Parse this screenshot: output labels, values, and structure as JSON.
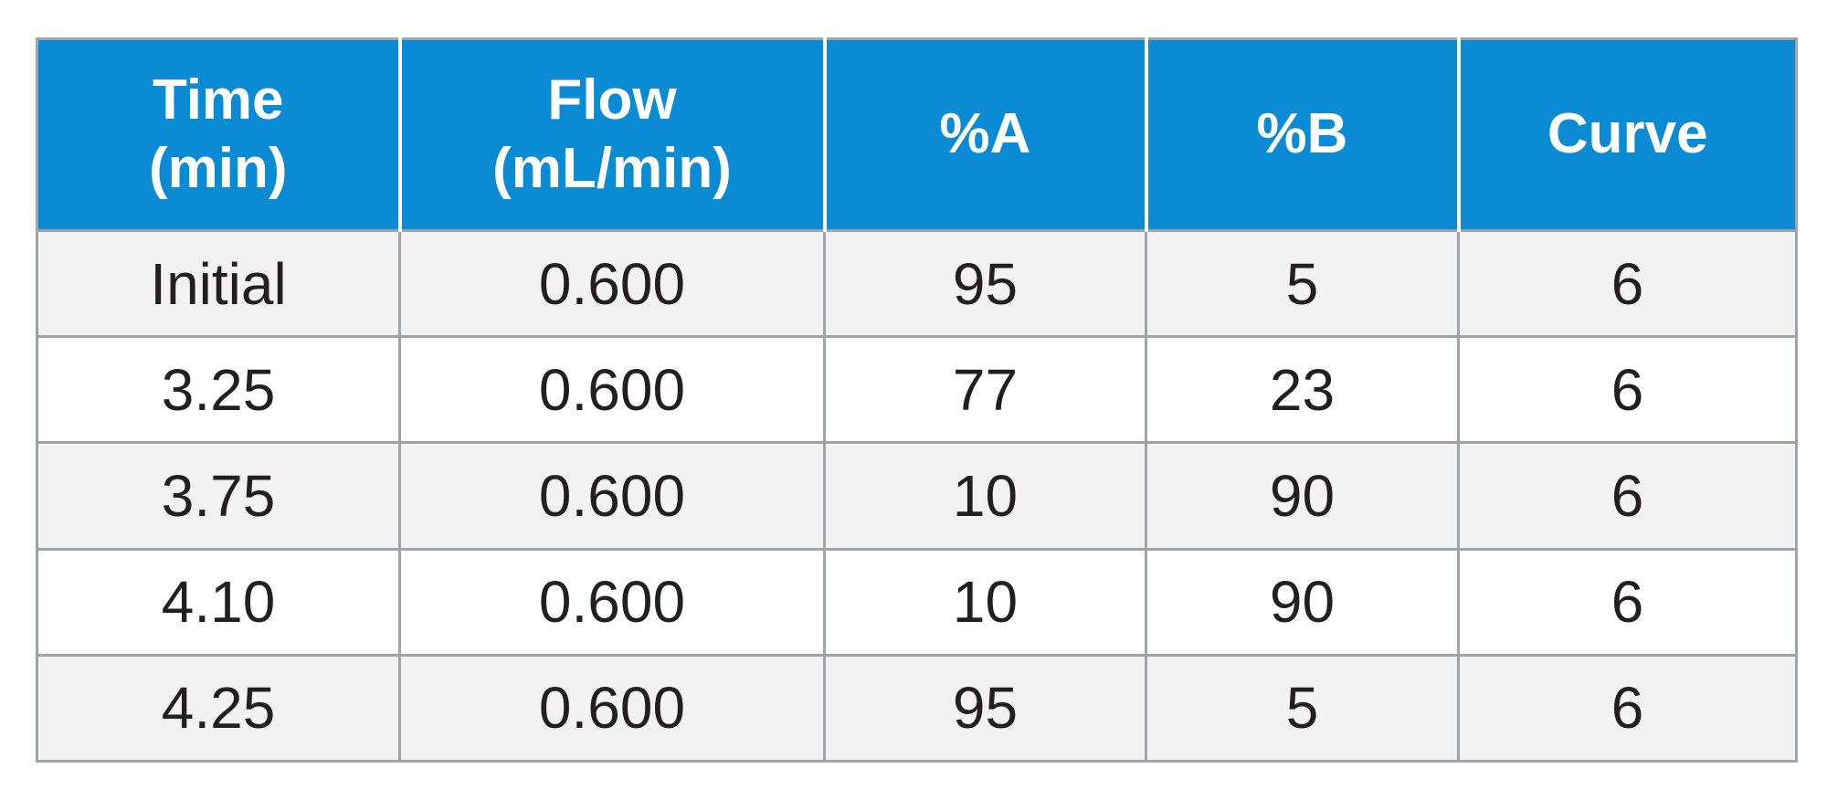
{
  "table": {
    "headers": [
      {
        "line1": "Time",
        "line2": "(min)"
      },
      {
        "line1": "Flow",
        "line2": "(mL/min)"
      },
      {
        "line1": "%A",
        "line2": ""
      },
      {
        "line1": "%B",
        "line2": ""
      },
      {
        "line1": "Curve",
        "line2": ""
      }
    ],
    "rows": [
      [
        "Initial",
        "0.600",
        "95",
        "5",
        "6"
      ],
      [
        "3.25",
        "0.600",
        "77",
        "23",
        "6"
      ],
      [
        "3.75",
        "0.600",
        "10",
        "90",
        "6"
      ],
      [
        "4.10",
        "0.600",
        "10",
        "90",
        "6"
      ],
      [
        "4.25",
        "0.600",
        "95",
        "5",
        "6"
      ]
    ]
  },
  "colors": {
    "header_background": "#0a8bd3",
    "header_text": "#ffffff",
    "row_shaded": "#f2f2f3",
    "row_plain": "#ffffff",
    "grid_line": "#9ea3a8",
    "body_text": "#231f20"
  }
}
